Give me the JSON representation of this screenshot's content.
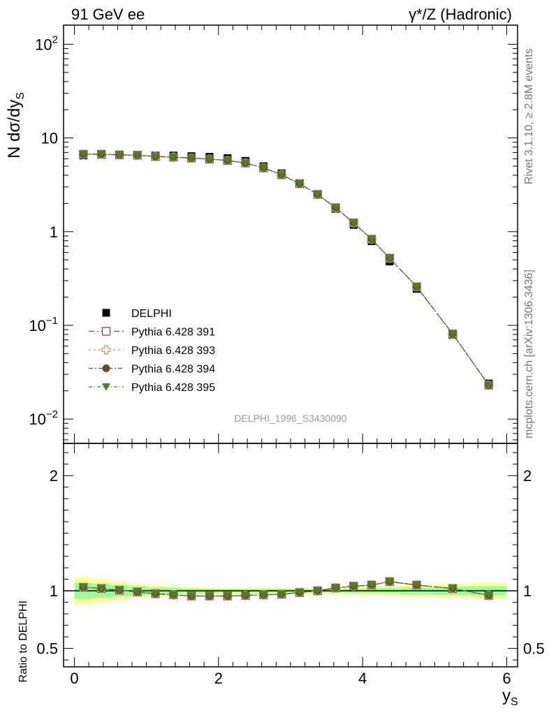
{
  "header": {
    "left_title": "91 GeV ee",
    "right_title": "γ*/Z (Hadronic)"
  },
  "side_labels": {
    "rivet": "Rivet 3.1.10, ≥ 2.8M events",
    "mcplots": "mcplots.cern.ch [arXiv:1306.3436]"
  },
  "watermark": "DELPHI_1996_S3430090",
  "colors": {
    "data": "#000000",
    "p391": "#7a4a66",
    "p393": "#a59a6a",
    "p394": "#6b4a2a",
    "p395": "#4f7f1e",
    "band_yellow": "#ffff99",
    "band_green": "#99ff99"
  },
  "chart_data": [
    {
      "type": "scatter",
      "panel": "main",
      "ylabel": "N dσ/dy",
      "ylabel_sub": "S",
      "yscale": "log",
      "xlim": [
        -0.15,
        6.15
      ],
      "ylim": [
        0.0055,
        160
      ],
      "y_ticks": [
        {
          "value": 0.01,
          "base": "10",
          "exp": "−2"
        },
        {
          "value": 0.1,
          "base": "10",
          "exp": "−1"
        },
        {
          "value": 1,
          "base": "1",
          "exp": ""
        },
        {
          "value": 10,
          "base": "10",
          "exp": ""
        },
        {
          "value": 100,
          "base": "10",
          "exp": "2"
        }
      ],
      "x": [
        0.125,
        0.375,
        0.625,
        0.875,
        1.125,
        1.375,
        1.625,
        1.875,
        2.125,
        2.375,
        2.625,
        2.875,
        3.125,
        3.375,
        3.625,
        3.875,
        4.125,
        4.375,
        4.75,
        5.25,
        5.75
      ],
      "series": [
        {
          "name": "DELPHI",
          "marker": "square",
          "color_key": "data",
          "values": [
            6.5,
            6.6,
            6.6,
            6.6,
            6.5,
            6.5,
            6.4,
            6.3,
            6.1,
            5.7,
            5.0,
            4.2,
            3.3,
            2.5,
            1.75,
            1.18,
            0.79,
            0.48,
            0.245,
            0.079,
            0.024
          ]
        },
        {
          "name": "Pythia 6.428 391",
          "marker": "open-square",
          "dash": "8,4,2,4",
          "color_key": "p391",
          "values": [
            6.7,
            6.7,
            6.6,
            6.55,
            6.35,
            6.25,
            6.1,
            5.95,
            5.75,
            5.4,
            4.8,
            4.05,
            3.25,
            2.5,
            1.8,
            1.24,
            0.83,
            0.52,
            0.258,
            0.081,
            0.023
          ]
        },
        {
          "name": "Pythia 6.428 393",
          "marker": "open-cross",
          "dash": "3,4",
          "color_key": "p393",
          "values": [
            6.7,
            6.7,
            6.6,
            6.55,
            6.35,
            6.25,
            6.1,
            5.95,
            5.75,
            5.4,
            4.8,
            4.05,
            3.25,
            2.5,
            1.8,
            1.24,
            0.83,
            0.52,
            0.258,
            0.081,
            0.023
          ]
        },
        {
          "name": "Pythia 6.428 394",
          "marker": "circle",
          "dash": "6,3,2,3",
          "color_key": "p394",
          "values": [
            6.7,
            6.7,
            6.6,
            6.55,
            6.35,
            6.25,
            6.1,
            5.95,
            5.75,
            5.4,
            4.8,
            4.05,
            3.25,
            2.5,
            1.8,
            1.24,
            0.83,
            0.52,
            0.258,
            0.081,
            0.023
          ]
        },
        {
          "name": "Pythia 6.428 395",
          "marker": "triangle-down",
          "dash": "5,3,1,3",
          "color_key": "p395",
          "values": [
            6.7,
            6.7,
            6.6,
            6.55,
            6.35,
            6.25,
            6.1,
            5.95,
            5.75,
            5.4,
            4.8,
            4.05,
            3.25,
            2.5,
            1.8,
            1.24,
            0.83,
            0.52,
            0.258,
            0.081,
            0.023
          ]
        }
      ],
      "legend_position": "lower-left"
    },
    {
      "type": "scatter",
      "panel": "ratio",
      "ylabel": "Ratio to DELPHI",
      "xlabel": "y",
      "xlabel_sub": "S",
      "xlim": [
        -0.15,
        6.15
      ],
      "ylim": [
        0.34,
        2.28
      ],
      "x_ticks": [
        0,
        2,
        4,
        6
      ],
      "y_ticks": [
        0.5,
        1,
        2
      ],
      "reference": 1,
      "bins": [
        [
          0,
          0.25
        ],
        [
          0.25,
          0.5
        ],
        [
          0.5,
          0.75
        ],
        [
          0.75,
          1.0
        ],
        [
          1.0,
          1.25
        ],
        [
          1.25,
          1.5
        ],
        [
          1.5,
          1.75
        ],
        [
          1.75,
          2.0
        ],
        [
          2.0,
          2.25
        ],
        [
          2.25,
          2.5
        ],
        [
          2.5,
          2.75
        ],
        [
          2.75,
          3.0
        ],
        [
          3.0,
          3.25
        ],
        [
          3.25,
          3.5
        ],
        [
          3.5,
          3.75
        ],
        [
          3.75,
          4.0
        ],
        [
          4.0,
          4.25
        ],
        [
          4.25,
          4.5
        ],
        [
          4.5,
          5.0
        ],
        [
          5.0,
          5.5
        ],
        [
          5.5,
          6.0
        ]
      ],
      "band_yellow": [
        0.12,
        0.1,
        0.08,
        0.06,
        0.05,
        0.04,
        0.035,
        0.03,
        0.03,
        0.03,
        0.03,
        0.03,
        0.03,
        0.03,
        0.03,
        0.035,
        0.04,
        0.045,
        0.05,
        0.06,
        0.07
      ],
      "band_green": [
        0.07,
        0.06,
        0.05,
        0.04,
        0.03,
        0.025,
        0.02,
        0.018,
        0.015,
        0.015,
        0.015,
        0.015,
        0.015,
        0.015,
        0.015,
        0.018,
        0.02,
        0.025,
        0.03,
        0.035,
        0.04
      ],
      "ratio_values": [
        1.03,
        1.02,
        1.005,
        0.99,
        0.975,
        0.965,
        0.955,
        0.955,
        0.955,
        0.96,
        0.965,
        0.97,
        0.985,
        1.0,
        1.025,
        1.04,
        1.05,
        1.08,
        1.05,
        1.02,
        0.96
      ]
    }
  ]
}
